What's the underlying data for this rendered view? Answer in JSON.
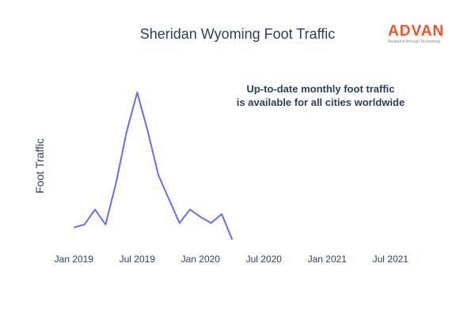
{
  "header": {
    "title": "Sheridan Wyoming Foot Traffic"
  },
  "logo": {
    "word": "ADVAN",
    "tagline": "Research through Technology"
  },
  "annotation": {
    "line1": "Up-to-date monthly foot traffic",
    "line2": "is available for all cities worldwide"
  },
  "chart_data": {
    "type": "line",
    "ylabel": "Foot Traffic",
    "x_ticks": [
      "Jan 2019",
      "Jul 2019",
      "Jan 2020",
      "Jul 2020",
      "Jan 2021",
      "Jul 2021"
    ],
    "x_tick_dates": [
      "2019-01",
      "2019-07",
      "2020-01",
      "2020-07",
      "2021-01",
      "2021-07"
    ],
    "xlim": [
      "2018-12",
      "2021-09"
    ],
    "series": [
      {
        "color": "#636efa",
        "x": [
          "2019-01",
          "2019-02",
          "2019-03",
          "2019-04",
          "2019-05",
          "2019-06",
          "2019-07",
          "2019-08",
          "2019-09",
          "2019-10",
          "2019-11",
          "2019-12",
          "2020-01",
          "2020-02",
          "2020-03",
          "2020-04"
        ],
        "y": [
          0.1,
          0.12,
          0.22,
          0.12,
          0.4,
          0.74,
          1.0,
          0.74,
          0.45,
          0.29,
          0.13,
          0.22,
          0.17,
          0.13,
          0.19,
          0.02
        ]
      }
    ],
    "grid": false,
    "legend": "none"
  }
}
